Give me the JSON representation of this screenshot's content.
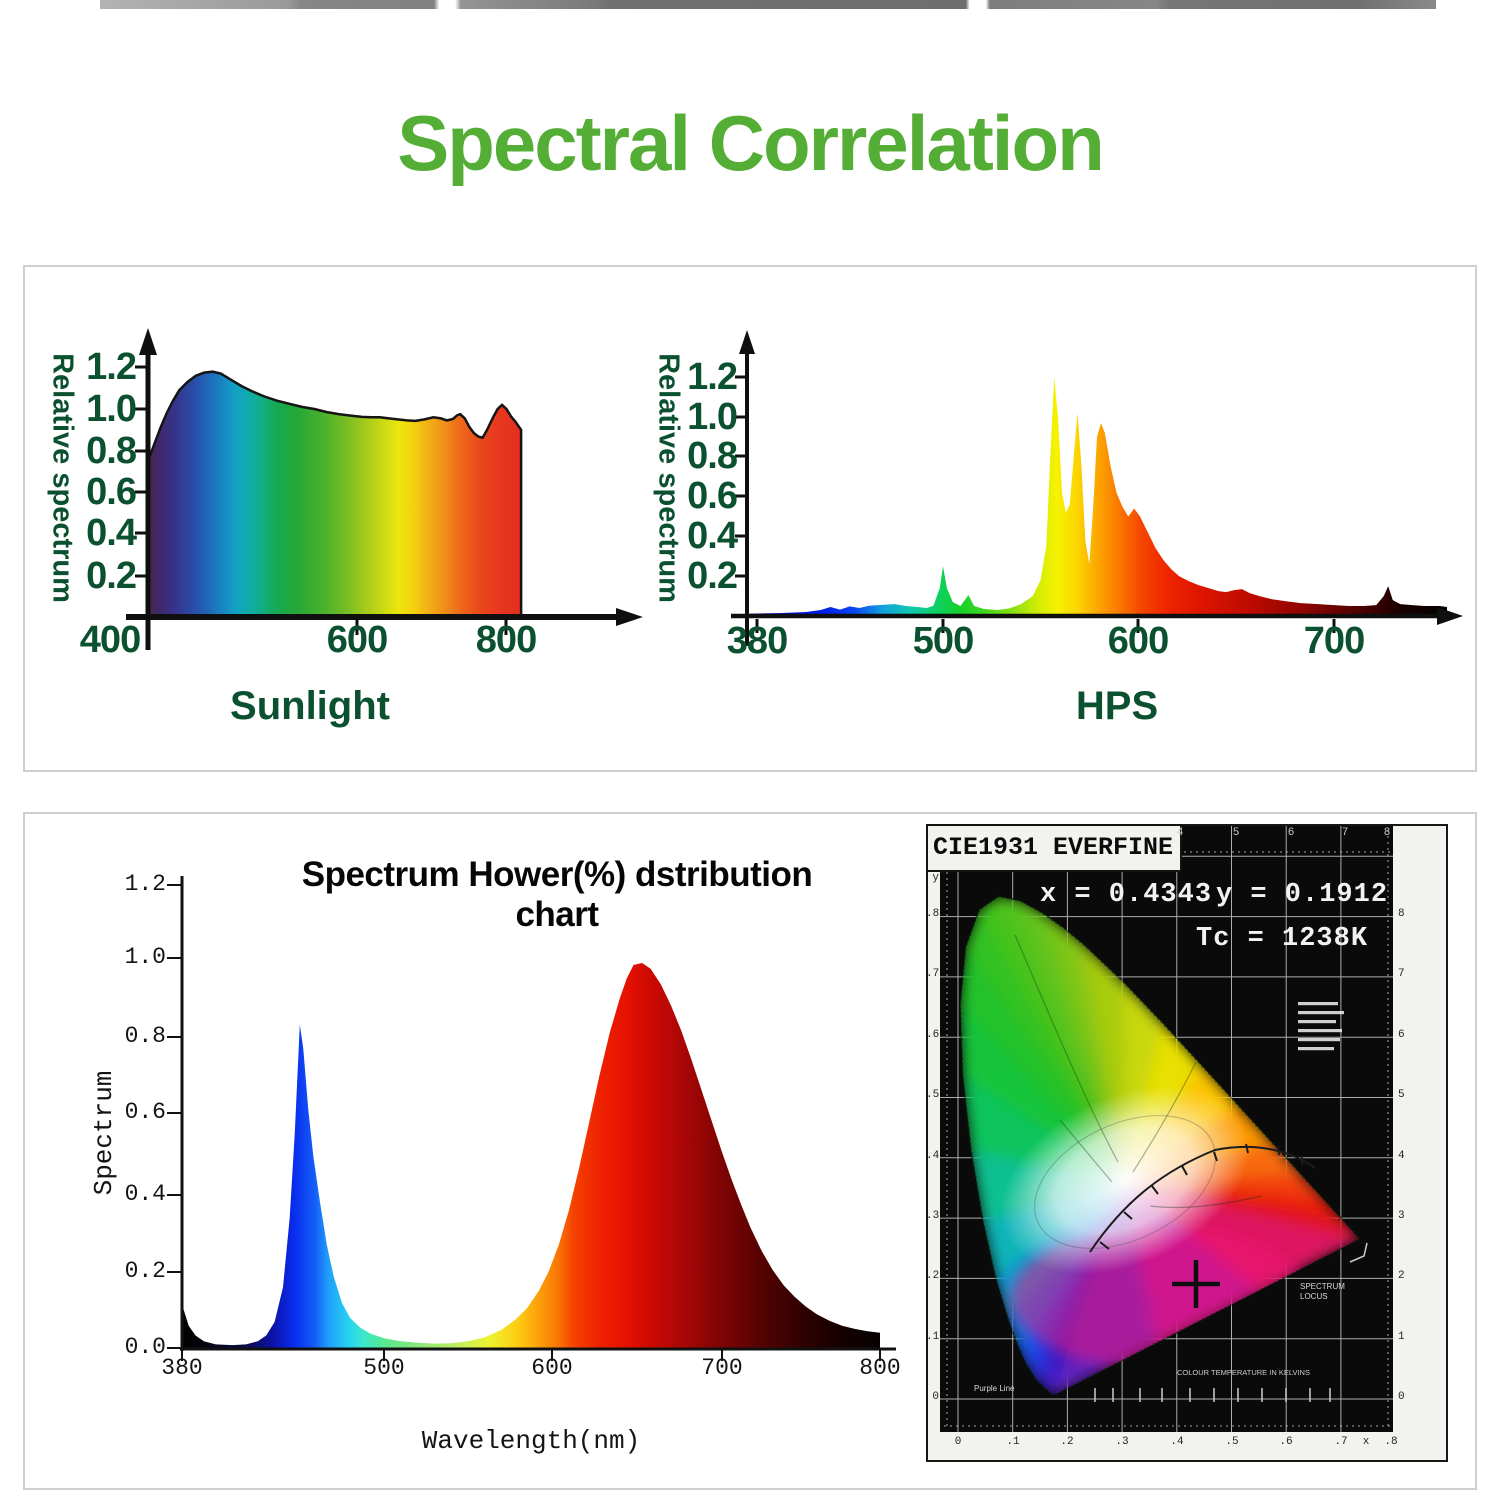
{
  "title": {
    "text": "Spectral Correlation"
  },
  "colors": {
    "title_green": "#54ad35",
    "axis_green": "#0b5130",
    "panel_border": "#cfcfcf"
  },
  "sunlight": {
    "caption": "Sunlight",
    "y_label": "Relative spectrum",
    "y_ticks": [
      "1.2",
      "1.0",
      "0.8",
      "0.6",
      "0.4",
      "0.2"
    ],
    "x_ticks": [
      "400",
      "600",
      "800"
    ]
  },
  "hps": {
    "caption": "HPS",
    "y_label": "Relative spectrum",
    "y_ticks": [
      "1.2",
      "1.0",
      "0.8",
      "0.6",
      "0.4",
      "0.2"
    ],
    "x_ticks": [
      "380",
      "500",
      "600",
      "700"
    ]
  },
  "led": {
    "title": "Spectrum Hower(%) dstribution chart",
    "y_label": "Spectrum",
    "x_label": "Wavelength(nm)",
    "y_ticks": [
      "1.2",
      "1.0",
      "0.8",
      "0.6",
      "0.4",
      "0.2",
      "0.0"
    ],
    "x_ticks": [
      "380",
      "500",
      "600",
      "700",
      "800"
    ]
  },
  "cie": {
    "header": "CIE1931 EVERFINE",
    "readout": {
      "x": "x = 0.4343",
      "y": "y = 0.1912",
      "tc": "Tc = 1238K"
    },
    "top_ticks": [
      "4",
      "5",
      "6",
      "7",
      "8"
    ],
    "left_ticks": [
      "y",
      ".8",
      ".7",
      ".6",
      ".5",
      ".4",
      ".3",
      ".2",
      ".1",
      "0"
    ],
    "right_ticks": [
      "8",
      "7",
      "6",
      "5",
      "4",
      "3",
      "2",
      "1",
      "0"
    ],
    "bottom_ticks": [
      "0",
      ".1",
      ".2",
      ".3",
      ".4",
      ".5",
      ".6",
      ".7",
      "x",
      ".8"
    ],
    "labels": {
      "spectrum_locus": "SPECTRUM LOCUS",
      "colour_temperature": "COLOUR TEMPERATURE IN KELVINS",
      "purple_line": "Purple Line"
    }
  },
  "chart_data": [
    {
      "id": "sunlight",
      "type": "area",
      "title": "Sunlight",
      "ylabel": "Relative spectrum",
      "xlim": [
        400,
        830
      ],
      "ylim": [
        0,
        1.3
      ],
      "x_tick_values": [
        400,
        600,
        800
      ],
      "y_tick_values": [
        0.2,
        0.4,
        0.6,
        0.8,
        1.0,
        1.2
      ],
      "points": [
        [
          400,
          0.75
        ],
        [
          406,
          0.83
        ],
        [
          412,
          0.91
        ],
        [
          418,
          0.98
        ],
        [
          424,
          1.04
        ],
        [
          430,
          1.09
        ],
        [
          438,
          1.13
        ],
        [
          446,
          1.16
        ],
        [
          454,
          1.175
        ],
        [
          462,
          1.18
        ],
        [
          470,
          1.17
        ],
        [
          480,
          1.14
        ],
        [
          490,
          1.11
        ],
        [
          500,
          1.085
        ],
        [
          512,
          1.06
        ],
        [
          524,
          1.04
        ],
        [
          536,
          1.025
        ],
        [
          548,
          1.01
        ],
        [
          560,
          1.0
        ],
        [
          572,
          0.985
        ],
        [
          584,
          0.975
        ],
        [
          596,
          0.968
        ],
        [
          608,
          0.962
        ],
        [
          620,
          0.96
        ],
        [
          632,
          0.96
        ],
        [
          644,
          0.955
        ],
        [
          656,
          0.95
        ],
        [
          668,
          0.945
        ],
        [
          680,
          0.943
        ],
        [
          692,
          0.95
        ],
        [
          704,
          0.96
        ],
        [
          714,
          0.955
        ],
        [
          722,
          0.945
        ],
        [
          730,
          0.952
        ],
        [
          736,
          0.97
        ],
        [
          740,
          0.975
        ],
        [
          746,
          0.955
        ],
        [
          752,
          0.915
        ],
        [
          758,
          0.885
        ],
        [
          764,
          0.868
        ],
        [
          770,
          0.862
        ],
        [
          776,
          0.9
        ],
        [
          784,
          0.96
        ],
        [
          790,
          1.0
        ],
        [
          796,
          1.02
        ],
        [
          802,
          1.0
        ],
        [
          808,
          0.965
        ],
        [
          814,
          0.94
        ],
        [
          819,
          0.915
        ],
        [
          822,
          0.9
        ]
      ]
    },
    {
      "id": "hps",
      "type": "area",
      "title": "HPS",
      "ylabel": "Relative spectrum",
      "xlim": [
        380,
        775
      ],
      "ylim": [
        0,
        1.3
      ],
      "x_tick_values": [
        380,
        500,
        600,
        700
      ],
      "y_tick_values": [
        0.2,
        0.4,
        0.6,
        0.8,
        1.0,
        1.2
      ],
      "points": [
        [
          380,
          0.012
        ],
        [
          400,
          0.015
        ],
        [
          415,
          0.02
        ],
        [
          424,
          0.03
        ],
        [
          430,
          0.045
        ],
        [
          436,
          0.032
        ],
        [
          442,
          0.048
        ],
        [
          448,
          0.04
        ],
        [
          454,
          0.052
        ],
        [
          462,
          0.056
        ],
        [
          470,
          0.06
        ],
        [
          477,
          0.05
        ],
        [
          484,
          0.045
        ],
        [
          490,
          0.04
        ],
        [
          494,
          0.052
        ],
        [
          498,
          0.14
        ],
        [
          500,
          0.25
        ],
        [
          502,
          0.14
        ],
        [
          505,
          0.07
        ],
        [
          509,
          0.05
        ],
        [
          513,
          0.105
        ],
        [
          516,
          0.05
        ],
        [
          521,
          0.035
        ],
        [
          528,
          0.03
        ],
        [
          534,
          0.038
        ],
        [
          540,
          0.06
        ],
        [
          546,
          0.1
        ],
        [
          550,
          0.18
        ],
        [
          553,
          0.35
        ],
        [
          555,
          0.8
        ],
        [
          557,
          1.2
        ],
        [
          559,
          1.0
        ],
        [
          561,
          0.62
        ],
        [
          563,
          0.52
        ],
        [
          565,
          0.56
        ],
        [
          567,
          0.8
        ],
        [
          569,
          1.02
        ],
        [
          571,
          0.75
        ],
        [
          573,
          0.38
        ],
        [
          575,
          0.26
        ],
        [
          577,
          0.55
        ],
        [
          579,
          0.9
        ],
        [
          581,
          0.97
        ],
        [
          583,
          0.92
        ],
        [
          586,
          0.75
        ],
        [
          589,
          0.62
        ],
        [
          592,
          0.55
        ],
        [
          595,
          0.5
        ],
        [
          598,
          0.54
        ],
        [
          601,
          0.5
        ],
        [
          605,
          0.42
        ],
        [
          609,
          0.34
        ],
        [
          613,
          0.28
        ],
        [
          617,
          0.235
        ],
        [
          621,
          0.2
        ],
        [
          626,
          0.175
        ],
        [
          631,
          0.155
        ],
        [
          636,
          0.14
        ],
        [
          641,
          0.125
        ],
        [
          645,
          0.12
        ],
        [
          649,
          0.13
        ],
        [
          653,
          0.135
        ],
        [
          657,
          0.115
        ],
        [
          662,
          0.1
        ],
        [
          668,
          0.085
        ],
        [
          675,
          0.075
        ],
        [
          683,
          0.065
        ],
        [
          692,
          0.06
        ],
        [
          700,
          0.055
        ],
        [
          710,
          0.05
        ],
        [
          720,
          0.05
        ],
        [
          728,
          0.055
        ],
        [
          733,
          0.1
        ],
        [
          736,
          0.15
        ],
        [
          739,
          0.08
        ],
        [
          744,
          0.06
        ],
        [
          752,
          0.055
        ],
        [
          760,
          0.05
        ],
        [
          770,
          0.05
        ],
        [
          775,
          0.045
        ]
      ]
    },
    {
      "id": "led",
      "type": "area",
      "title": "Spectrum Hower(%) dstribution chart",
      "xlabel": "Wavelength(nm)",
      "ylabel": "Spectrum",
      "xlim": [
        380,
        800
      ],
      "ylim": [
        0,
        1.2
      ],
      "x_tick_values": [
        380,
        500,
        600,
        700,
        800
      ],
      "y_tick_values": [
        0.0,
        0.2,
        0.4,
        0.6,
        0.8,
        1.0,
        1.2
      ],
      "points": [
        [
          380,
          0.115
        ],
        [
          384,
          0.06
        ],
        [
          388,
          0.035
        ],
        [
          393,
          0.02
        ],
        [
          400,
          0.012
        ],
        [
          410,
          0.01
        ],
        [
          418,
          0.012
        ],
        [
          425,
          0.02
        ],
        [
          430,
          0.035
        ],
        [
          435,
          0.07
        ],
        [
          440,
          0.16
        ],
        [
          444,
          0.34
        ],
        [
          447,
          0.56
        ],
        [
          450,
          0.84
        ],
        [
          452,
          0.78
        ],
        [
          455,
          0.62
        ],
        [
          458,
          0.5
        ],
        [
          462,
          0.38
        ],
        [
          466,
          0.27
        ],
        [
          470,
          0.19
        ],
        [
          475,
          0.12
        ],
        [
          480,
          0.08
        ],
        [
          486,
          0.055
        ],
        [
          492,
          0.04
        ],
        [
          500,
          0.028
        ],
        [
          510,
          0.02
        ],
        [
          520,
          0.016
        ],
        [
          530,
          0.014
        ],
        [
          540,
          0.015
        ],
        [
          550,
          0.02
        ],
        [
          560,
          0.03
        ],
        [
          570,
          0.05
        ],
        [
          578,
          0.075
        ],
        [
          585,
          0.105
        ],
        [
          592,
          0.15
        ],
        [
          598,
          0.2
        ],
        [
          604,
          0.27
        ],
        [
          610,
          0.36
        ],
        [
          616,
          0.47
        ],
        [
          622,
          0.59
        ],
        [
          628,
          0.71
        ],
        [
          634,
          0.82
        ],
        [
          640,
          0.91
        ],
        [
          644,
          0.96
        ],
        [
          648,
          0.995
        ],
        [
          653,
          1.0
        ],
        [
          658,
          0.985
        ],
        [
          664,
          0.945
        ],
        [
          670,
          0.89
        ],
        [
          676,
          0.825
        ],
        [
          682,
          0.75
        ],
        [
          688,
          0.67
        ],
        [
          694,
          0.59
        ],
        [
          700,
          0.51
        ],
        [
          706,
          0.44
        ],
        [
          712,
          0.375
        ],
        [
          718,
          0.315
        ],
        [
          725,
          0.255
        ],
        [
          732,
          0.205
        ],
        [
          739,
          0.165
        ],
        [
          746,
          0.135
        ],
        [
          753,
          0.11
        ],
        [
          760,
          0.09
        ],
        [
          768,
          0.073
        ],
        [
          776,
          0.06
        ],
        [
          784,
          0.052
        ],
        [
          792,
          0.046
        ],
        [
          800,
          0.042
        ]
      ]
    },
    {
      "id": "cie1931",
      "type": "chromaticity",
      "title": "CIE1931 EVERFINE",
      "point": {
        "x": 0.4343,
        "y": 0.1912
      },
      "tc": "1238K"
    }
  ]
}
